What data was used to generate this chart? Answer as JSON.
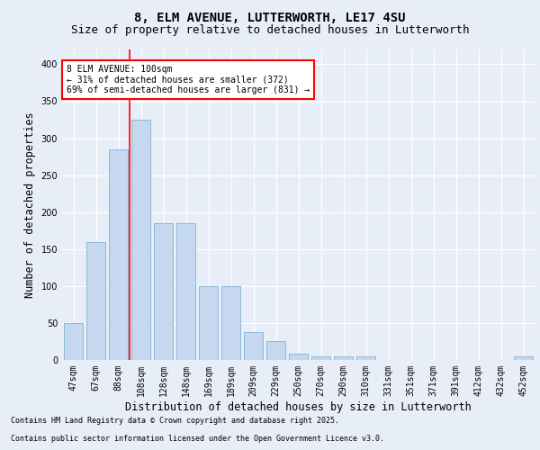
{
  "title1": "8, ELM AVENUE, LUTTERWORTH, LE17 4SU",
  "title2": "Size of property relative to detached houses in Lutterworth",
  "xlabel": "Distribution of detached houses by size in Lutterworth",
  "ylabel": "Number of detached properties",
  "categories": [
    "47sqm",
    "67sqm",
    "88sqm",
    "108sqm",
    "128sqm",
    "148sqm",
    "169sqm",
    "189sqm",
    "209sqm",
    "229sqm",
    "250sqm",
    "270sqm",
    "290sqm",
    "310sqm",
    "331sqm",
    "351sqm",
    "371sqm",
    "391sqm",
    "412sqm",
    "432sqm",
    "452sqm"
  ],
  "values": [
    50,
    160,
    285,
    325,
    185,
    185,
    100,
    100,
    38,
    25,
    8,
    5,
    5,
    5,
    0,
    0,
    0,
    0,
    0,
    0,
    5
  ],
  "bar_color": "#c5d8f0",
  "bar_edgecolor": "#8ab8d8",
  "red_line_x": 2.5,
  "annotation_text": "8 ELM AVENUE: 100sqm\n← 31% of detached houses are smaller (372)\n69% of semi-detached houses are larger (831) →",
  "annotation_box_color": "white",
  "annotation_box_edgecolor": "red",
  "ylim": [
    0,
    420
  ],
  "yticks": [
    0,
    50,
    100,
    150,
    200,
    250,
    300,
    350,
    400
  ],
  "background_color": "#e8eef8",
  "plot_background": "#e8eef8",
  "footer1": "Contains HM Land Registry data © Crown copyright and database right 2025.",
  "footer2": "Contains public sector information licensed under the Open Government Licence v3.0.",
  "title_fontsize": 10,
  "subtitle_fontsize": 9,
  "tick_fontsize": 7,
  "label_fontsize": 8.5,
  "footer_fontsize": 6,
  "annotation_fontsize": 7
}
